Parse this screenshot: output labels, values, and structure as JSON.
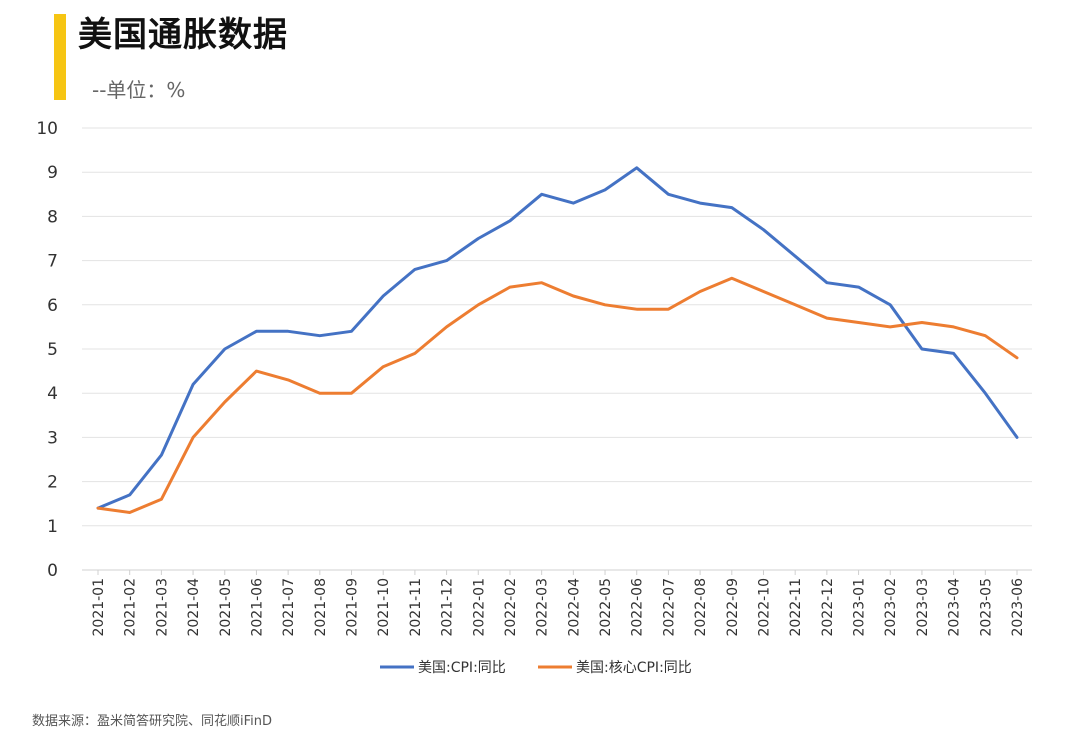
{
  "header": {
    "title": "美国通胀数据",
    "subtitle": "--单位：%",
    "accent_color": "#f6c513"
  },
  "footer": {
    "source": "数据来源：盈米简答研究院、同花顺iFinD"
  },
  "chart_data": {
    "type": "line",
    "title": "美国通胀数据",
    "xlabel": "",
    "ylabel": "",
    "ylim": [
      0,
      10
    ],
    "yticks": [
      0,
      1,
      2,
      3,
      4,
      5,
      6,
      7,
      8,
      9,
      10
    ],
    "grid": true,
    "legend_position": "bottom",
    "x": [
      "2021-01",
      "2021-02",
      "2021-03",
      "2021-04",
      "2021-05",
      "2021-06",
      "2021-07",
      "2021-08",
      "2021-09",
      "2021-10",
      "2021-11",
      "2021-12",
      "2022-01",
      "2022-02",
      "2022-03",
      "2022-04",
      "2022-05",
      "2022-06",
      "2022-07",
      "2022-08",
      "2022-09",
      "2022-10",
      "2022-11",
      "2022-12",
      "2023-01",
      "2023-02",
      "2023-03",
      "2023-04",
      "2023-05",
      "2023-06"
    ],
    "series": [
      {
        "name": "美国:CPI:同比",
        "color": "#4472c4",
        "values": [
          1.4,
          1.7,
          2.6,
          4.2,
          5.0,
          5.4,
          5.4,
          5.3,
          5.4,
          6.2,
          6.8,
          7.0,
          7.5,
          7.9,
          8.5,
          8.3,
          8.6,
          9.1,
          8.5,
          8.3,
          8.2,
          7.7,
          7.1,
          6.5,
          6.4,
          6.0,
          5.0,
          4.9,
          4.0,
          3.0
        ]
      },
      {
        "name": "美国:核心CPI:同比",
        "color": "#ed7d31",
        "values": [
          1.4,
          1.3,
          1.6,
          3.0,
          3.8,
          4.5,
          4.3,
          4.0,
          4.0,
          4.6,
          4.9,
          5.5,
          6.0,
          6.4,
          6.5,
          6.2,
          6.0,
          5.9,
          5.9,
          6.3,
          6.6,
          6.3,
          6.0,
          5.7,
          5.6,
          5.5,
          5.6,
          5.5,
          5.3,
          4.8
        ]
      }
    ]
  }
}
